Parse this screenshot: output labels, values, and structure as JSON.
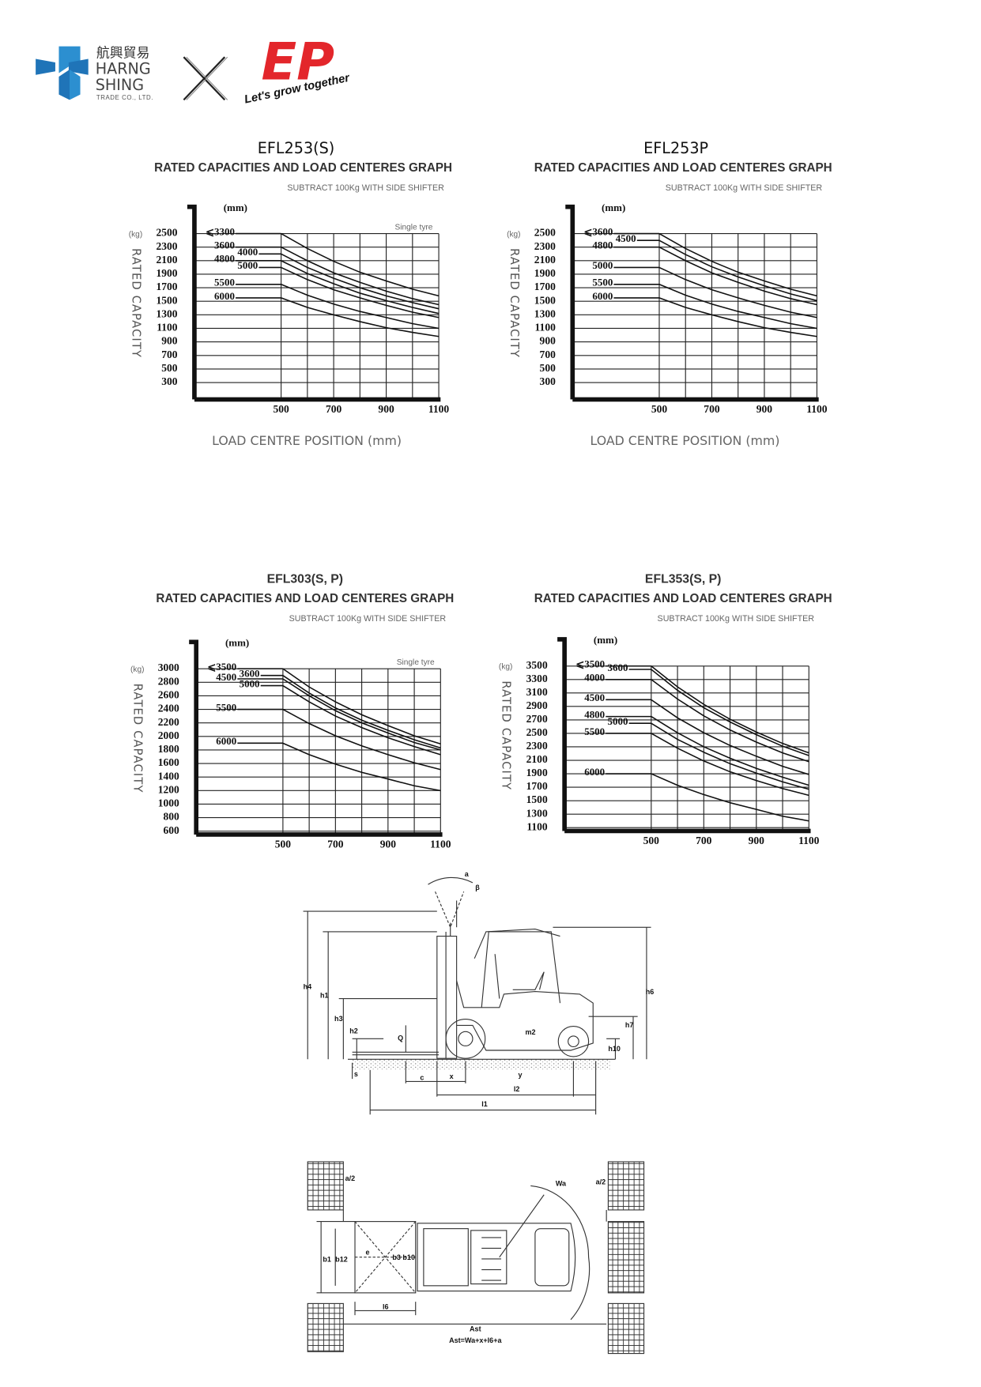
{
  "header": {
    "logo_chinese": "航興貿易",
    "logo_name_1": "HARNG",
    "logo_name_2": "SHING",
    "logo_sub": "TRADE CO., LTD.",
    "partner_logo": "EP",
    "slogan": "Let's grow together"
  },
  "chart_data": [
    {
      "type": "line",
      "title": "EFL253(S)",
      "subtitle": "RATED CAPACITIES AND LOAD CENTERES GRAPH",
      "note": "SUBTRACT 100Kg WITH SIDE SHIFTER",
      "x_unit": "(mm)",
      "y_unit": "(kg)",
      "y_label": "RATED CAPACITY",
      "x_label": "LOAD CENTRE POSITION (mm)",
      "annotation": "Single tyre",
      "color": "#111111",
      "x": [
        500,
        600,
        700,
        800,
        900,
        1000,
        1100
      ],
      "xlim": [
        170,
        1100
      ],
      "ylim": [
        50,
        2500
      ],
      "xticks": [
        500,
        700,
        900,
        1100
      ],
      "xgrid": [
        500,
        600,
        700,
        800,
        900,
        1000,
        1100
      ],
      "yticks": [
        2500,
        2300,
        2100,
        1900,
        1700,
        1500,
        1300,
        1100,
        900,
        700,
        500,
        300
      ],
      "series": [
        {
          "name": "⩽3300",
          "values": [
            2500,
            2280,
            2090,
            1930,
            1800,
            1680,
            1580
          ]
        },
        {
          "name": "3600",
          "values": [
            2300,
            2100,
            1920,
            1780,
            1650,
            1540,
            1450
          ]
        },
        {
          "name": "4000",
          "values": [
            2200,
            2000,
            1840,
            1700,
            1580,
            1480,
            1390
          ]
        },
        {
          "name": "4800",
          "values": [
            2100,
            1910,
            1760,
            1620,
            1510,
            1410,
            1320
          ]
        },
        {
          "name": "5000",
          "values": [
            2000,
            1820,
            1670,
            1550,
            1440,
            1340,
            1260
          ]
        },
        {
          "name": "5500",
          "values": [
            1750,
            1590,
            1460,
            1350,
            1260,
            1170,
            1100
          ]
        },
        {
          "name": "6000",
          "values": [
            1550,
            1410,
            1300,
            1200,
            1110,
            1040,
            980
          ]
        }
      ]
    },
    {
      "type": "line",
      "title": "EFL253P",
      "subtitle": "RATED CAPACITIES AND LOAD CENTERES GRAPH",
      "note": "SUBTRACT 100Kg WITH SIDE SHIFTER",
      "x_unit": "(mm)",
      "y_unit": "(kg)",
      "y_label": "RATED CAPACITY",
      "x_label": "LOAD CENTRE POSITION (mm)",
      "color": "#111111",
      "x": [
        500,
        600,
        700,
        800,
        900,
        1000,
        1100
      ],
      "xlim": [
        170,
        1100
      ],
      "ylim": [
        50,
        2500
      ],
      "xticks": [
        500,
        700,
        900,
        1100
      ],
      "xgrid": [
        500,
        600,
        700,
        800,
        900,
        1000,
        1100
      ],
      "yticks": [
        2500,
        2300,
        2100,
        1900,
        1700,
        1500,
        1300,
        1100,
        900,
        700,
        500,
        300
      ],
      "series": [
        {
          "name": "⩽3600",
          "values": [
            2500,
            2280,
            2090,
            1930,
            1800,
            1680,
            1580
          ]
        },
        {
          "name": "4500",
          "values": [
            2400,
            2190,
            2010,
            1860,
            1730,
            1610,
            1510
          ]
        },
        {
          "name": "4800",
          "values": [
            2300,
            2100,
            1920,
            1780,
            1650,
            1540,
            1450
          ]
        },
        {
          "name": "5000",
          "values": [
            2000,
            1820,
            1670,
            1550,
            1440,
            1340,
            1260
          ]
        },
        {
          "name": "5500",
          "values": [
            1750,
            1590,
            1460,
            1350,
            1260,
            1170,
            1100
          ]
        },
        {
          "name": "6000",
          "values": [
            1550,
            1410,
            1300,
            1200,
            1110,
            1040,
            980
          ]
        }
      ]
    },
    {
      "type": "line",
      "title": "EFL303(S, P)",
      "subtitle": "RATED CAPACITIES AND LOAD CENTERES GRAPH",
      "note": "SUBTRACT 100Kg WITH SIDE SHIFTER",
      "x_unit": "(mm)",
      "y_unit": "(kg)",
      "y_label": "RATED CAPACITY",
      "annotation": "Single tyre",
      "color": "#111111",
      "x": [
        500,
        600,
        700,
        800,
        900,
        1000,
        1100
      ],
      "xlim": [
        170,
        1100
      ],
      "ylim": [
        550,
        3000
      ],
      "xticks": [
        500,
        700,
        900,
        1100
      ],
      "xgrid": [
        500,
        600,
        700,
        800,
        900,
        1000,
        1100
      ],
      "yticks": [
        3000,
        2800,
        2600,
        2400,
        2200,
        2000,
        1800,
        1600,
        1400,
        1200,
        1000,
        800,
        600
      ],
      "series": [
        {
          "name": "⩽3500",
          "values": [
            3000,
            2730,
            2510,
            2320,
            2160,
            2010,
            1890
          ]
        },
        {
          "name": "3600",
          "values": [
            2900,
            2640,
            2420,
            2240,
            2090,
            1950,
            1830
          ]
        },
        {
          "name": "4500",
          "values": [
            2850,
            2600,
            2380,
            2200,
            2050,
            1910,
            1800
          ]
        },
        {
          "name": "5000",
          "values": [
            2750,
            2510,
            2300,
            2130,
            1980,
            1850,
            1730
          ]
        },
        {
          "name": "5500",
          "values": [
            2400,
            2190,
            2010,
            1860,
            1730,
            1610,
            1510
          ]
        },
        {
          "name": "6000",
          "values": [
            1900,
            1730,
            1590,
            1470,
            1370,
            1270,
            1200
          ]
        }
      ]
    },
    {
      "type": "line",
      "title": "EFL353(S, P)",
      "subtitle": "RATED CAPACITIES AND LOAD CENTERES GRAPH",
      "note": "SUBTRACT 100Kg WITH SIDE SHIFTER",
      "x_unit": "(mm)",
      "y_unit": "(kg)",
      "y_label": "RATED CAPACITY",
      "color": "#111111",
      "x": [
        500,
        600,
        700,
        800,
        900,
        1000,
        1100
      ],
      "xlim": [
        170,
        1100
      ],
      "ylim": [
        1050,
        3500
      ],
      "xticks": [
        500,
        700,
        900,
        1100
      ],
      "xgrid": [
        500,
        600,
        700,
        800,
        900,
        1000,
        1100
      ],
      "yticks": [
        3500,
        3300,
        3100,
        2900,
        2700,
        2500,
        2300,
        2100,
        1900,
        1700,
        1500,
        1300,
        1100
      ],
      "series": [
        {
          "name": "⩽3500",
          "values": [
            3500,
            3190,
            2930,
            2710,
            2520,
            2350,
            2210
          ]
        },
        {
          "name": "3600",
          "values": [
            3450,
            3140,
            2880,
            2670,
            2480,
            2310,
            2170
          ]
        },
        {
          "name": "4000",
          "values": [
            3300,
            3010,
            2760,
            2550,
            2370,
            2210,
            2080
          ]
        },
        {
          "name": "4500",
          "values": [
            3000,
            2730,
            2510,
            2320,
            2160,
            2010,
            1890
          ]
        },
        {
          "name": "4800",
          "values": [
            2750,
            2510,
            2300,
            2130,
            1980,
            1850,
            1730
          ]
        },
        {
          "name": "5000",
          "values": [
            2650,
            2410,
            2220,
            2050,
            1910,
            1780,
            1670
          ]
        },
        {
          "name": "5500",
          "values": [
            2500,
            2280,
            2090,
            1930,
            1800,
            1680,
            1580
          ]
        },
        {
          "name": "6000",
          "values": [
            1900,
            1730,
            1590,
            1470,
            1370,
            1270,
            1200
          ]
        }
      ]
    }
  ],
  "diagrams": {
    "side_view": {
      "labels": [
        "a",
        "β",
        "h4",
        "h1",
        "h3",
        "h2",
        "Q",
        "m2",
        "h6",
        "h7",
        "h10",
        "s",
        "c",
        "x",
        "y",
        "l2",
        "l1"
      ]
    },
    "top_view": {
      "labels": [
        "a/2",
        "Wa",
        "a/2",
        "b1",
        "b12",
        "e",
        "b3 b10",
        "l6",
        "Ast"
      ],
      "formula": "Ast=Wa+x+l6+a"
    }
  }
}
